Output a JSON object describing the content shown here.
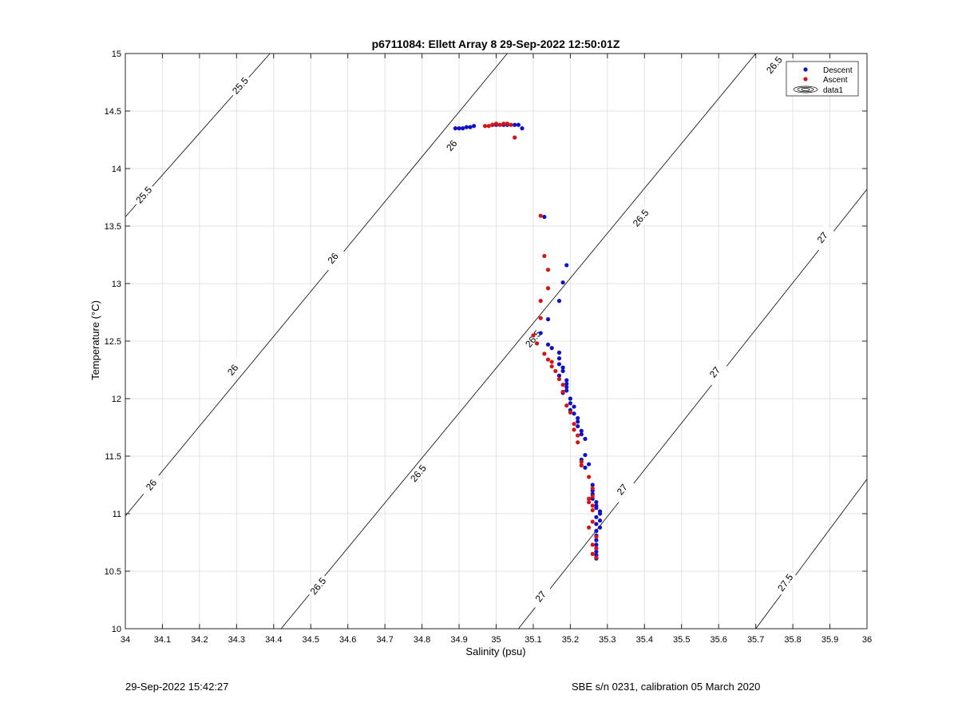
{
  "chart_data": {
    "type": "scatter",
    "title": "p6711084: Ellett Array 8 29-Sep-2022 12:50:01Z",
    "xlabel": "Salinity (psu)",
    "ylabel": "Temperature (°C)",
    "xlim": [
      34,
      36
    ],
    "ylim": [
      10,
      15
    ],
    "xticks": [
      "34",
      "34.1",
      "34.2",
      "34.3",
      "34.4",
      "34.5",
      "34.6",
      "34.7",
      "34.8",
      "34.9",
      "35",
      "35.1",
      "35.2",
      "35.3",
      "35.4",
      "35.5",
      "35.6",
      "35.7",
      "35.8",
      "35.9",
      "36"
    ],
    "yticks": [
      "10",
      "10.5",
      "11",
      "11.5",
      "12",
      "12.5",
      "13",
      "13.5",
      "14",
      "14.5",
      "15"
    ],
    "grid": true,
    "legend_position": "top-right",
    "legend": [
      "Descent",
      "Ascent",
      "data1"
    ],
    "colors": {
      "descent": "#1010c8",
      "ascent": "#d41515",
      "contour": "#000000",
      "grid": "#e2e2e2"
    },
    "contours": [
      {
        "level": "25.5",
        "line": [
          [
            34.0,
            13.58
          ],
          [
            34.39,
            15.0
          ]
        ],
        "labels": [
          [
            34.05,
            13.77
          ],
          [
            34.31,
            14.72
          ]
        ]
      },
      {
        "level": "26",
        "line": [
          [
            34.0,
            10.98
          ],
          [
            34.0,
            10.98
          ],
          [
            35.03,
            15.0
          ]
        ],
        "labels": [
          [
            34.07,
            11.25
          ],
          [
            34.29,
            12.25
          ],
          [
            34.56,
            13.22
          ],
          [
            34.88,
            14.2
          ]
        ]
      },
      {
        "level": "26.5",
        "line": [
          [
            34.42,
            10.0
          ],
          [
            35.7,
            15.0
          ]
        ],
        "labels": [
          [
            34.52,
            10.37
          ],
          [
            34.79,
            11.35
          ],
          [
            35.1,
            12.52
          ],
          [
            35.39,
            13.57
          ],
          [
            35.75,
            14.9
          ]
        ]
      },
      {
        "level": "27",
        "line": [
          [
            35.06,
            10.0
          ],
          [
            36.0,
            13.82
          ]
        ],
        "labels": [
          [
            35.12,
            10.28
          ],
          [
            35.34,
            11.21
          ],
          [
            35.59,
            12.23
          ],
          [
            35.88,
            13.4
          ]
        ]
      },
      {
        "level": "27.5",
        "line": [
          [
            35.7,
            10.0
          ],
          [
            36.0,
            11.3
          ]
        ],
        "labels": [
          [
            35.78,
            10.4
          ]
        ]
      }
    ],
    "series": [
      {
        "name": "Descent",
        "points": [
          [
            34.89,
            14.35
          ],
          [
            34.9,
            14.35
          ],
          [
            34.91,
            14.35
          ],
          [
            34.92,
            14.36
          ],
          [
            34.93,
            14.36
          ],
          [
            34.94,
            14.37
          ],
          [
            34.99,
            14.38
          ],
          [
            35.0,
            14.38
          ],
          [
            35.02,
            14.38
          ],
          [
            35.03,
            14.38
          ],
          [
            35.05,
            14.38
          ],
          [
            35.06,
            14.38
          ],
          [
            35.07,
            14.35
          ],
          [
            35.13,
            13.58
          ],
          [
            35.19,
            13.16
          ],
          [
            35.18,
            13.01
          ],
          [
            35.17,
            12.85
          ],
          [
            35.14,
            12.69
          ],
          [
            35.12,
            12.57
          ],
          [
            35.14,
            12.47
          ],
          [
            35.15,
            12.44
          ],
          [
            35.17,
            12.4
          ],
          [
            35.17,
            12.35
          ],
          [
            35.17,
            12.3
          ],
          [
            35.18,
            12.27
          ],
          [
            35.18,
            12.24
          ],
          [
            35.17,
            12.2
          ],
          [
            35.19,
            12.16
          ],
          [
            35.19,
            12.13
          ],
          [
            35.19,
            12.1
          ],
          [
            35.19,
            12.07
          ],
          [
            35.18,
            12.05
          ],
          [
            35.2,
            12.0
          ],
          [
            35.2,
            11.96
          ],
          [
            35.21,
            11.93
          ],
          [
            35.2,
            11.9
          ],
          [
            35.21,
            11.87
          ],
          [
            35.22,
            11.83
          ],
          [
            35.22,
            11.8
          ],
          [
            35.22,
            11.76
          ],
          [
            35.23,
            11.72
          ],
          [
            35.23,
            11.69
          ],
          [
            35.24,
            11.65
          ],
          [
            35.24,
            11.51
          ],
          [
            35.23,
            11.47
          ],
          [
            35.25,
            11.43
          ],
          [
            35.24,
            11.4
          ],
          [
            35.26,
            11.25
          ],
          [
            35.26,
            11.2
          ],
          [
            35.26,
            11.17
          ],
          [
            35.26,
            11.13
          ],
          [
            35.27,
            11.1
          ],
          [
            35.27,
            11.07
          ],
          [
            35.27,
            11.05
          ],
          [
            35.28,
            11.02
          ],
          [
            35.28,
            11.0
          ],
          [
            35.27,
            10.97
          ],
          [
            35.28,
            10.94
          ],
          [
            35.27,
            10.91
          ],
          [
            35.28,
            10.88
          ],
          [
            35.27,
            10.85
          ],
          [
            35.27,
            10.81
          ],
          [
            35.27,
            10.77
          ],
          [
            35.27,
            10.73
          ],
          [
            35.27,
            10.7
          ],
          [
            35.27,
            10.67
          ],
          [
            35.27,
            10.64
          ],
          [
            35.27,
            10.61
          ]
        ]
      },
      {
        "name": "Ascent",
        "points": [
          [
            34.97,
            14.37
          ],
          [
            34.98,
            14.37
          ],
          [
            34.99,
            14.38
          ],
          [
            35.0,
            14.39
          ],
          [
            35.01,
            14.38
          ],
          [
            35.02,
            14.39
          ],
          [
            35.03,
            14.39
          ],
          [
            35.04,
            14.38
          ],
          [
            35.05,
            14.27
          ],
          [
            35.12,
            13.59
          ],
          [
            35.13,
            13.24
          ],
          [
            35.14,
            13.12
          ],
          [
            35.14,
            12.96
          ],
          [
            35.12,
            12.85
          ],
          [
            35.12,
            12.7
          ],
          [
            35.1,
            12.55
          ],
          [
            35.11,
            12.48
          ],
          [
            35.13,
            12.39
          ],
          [
            35.14,
            12.34
          ],
          [
            35.15,
            12.32
          ],
          [
            35.15,
            12.28
          ],
          [
            35.16,
            12.24
          ],
          [
            35.17,
            12.17
          ],
          [
            35.18,
            12.12
          ],
          [
            35.18,
            12.06
          ],
          [
            35.19,
            11.94
          ],
          [
            35.2,
            11.88
          ],
          [
            35.21,
            11.78
          ],
          [
            35.21,
            11.73
          ],
          [
            35.22,
            11.68
          ],
          [
            35.22,
            11.62
          ],
          [
            35.23,
            11.45
          ],
          [
            35.23,
            11.42
          ],
          [
            35.25,
            11.32
          ],
          [
            35.26,
            11.22
          ],
          [
            35.26,
            11.15
          ],
          [
            35.25,
            11.13
          ],
          [
            35.25,
            11.1
          ],
          [
            35.26,
            11.07
          ],
          [
            35.26,
            11.03
          ],
          [
            35.26,
            10.93
          ],
          [
            35.25,
            10.88
          ],
          [
            35.27,
            10.8
          ],
          [
            35.26,
            10.73
          ],
          [
            35.27,
            10.7
          ],
          [
            35.26,
            10.65
          ],
          [
            35.27,
            10.62
          ]
        ]
      }
    ]
  },
  "footer": {
    "left": "29-Sep-2022 15:42:27",
    "right": "SBE s/n 0231, calibration 05 March 2020"
  }
}
